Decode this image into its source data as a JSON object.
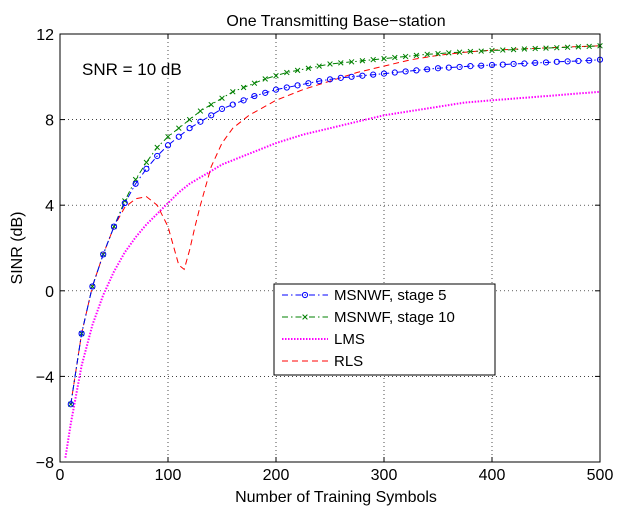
{
  "chart_data": {
    "type": "line",
    "title": "One Transmitting Base−station",
    "xlabel": "Number of Training Symbols",
    "ylabel": "SINR (dB)",
    "annotation": "SNR = 10 dB",
    "xlim": [
      0,
      500
    ],
    "ylim": [
      -8,
      12
    ],
    "xticks": [
      0,
      100,
      200,
      300,
      400,
      500
    ],
    "xtick_labels": [
      "0",
      "100",
      "200",
      "300",
      "400",
      "500"
    ],
    "yticks": [
      -8,
      -4,
      0,
      4,
      8,
      12
    ],
    "ytick_labels": [
      "−8",
      "−4",
      "0",
      "4",
      "8",
      "12"
    ],
    "grid": true,
    "legend_position": "center-right",
    "series": [
      {
        "name": "MSNWF, stage 5",
        "color": "#0000ff",
        "marker": "circle",
        "dash": "dashdot",
        "x": [
          10,
          20,
          30,
          40,
          50,
          60,
          70,
          80,
          90,
          100,
          110,
          120,
          130,
          140,
          150,
          160,
          170,
          180,
          190,
          200,
          210,
          220,
          230,
          240,
          250,
          260,
          270,
          280,
          290,
          300,
          310,
          320,
          330,
          340,
          350,
          360,
          370,
          380,
          390,
          400,
          410,
          420,
          430,
          440,
          450,
          460,
          470,
          480,
          490,
          500
        ],
        "y": [
          -5.3,
          -2.0,
          0.2,
          1.7,
          3.0,
          4.1,
          5.0,
          5.7,
          6.3,
          6.8,
          7.2,
          7.6,
          7.9,
          8.2,
          8.5,
          8.7,
          8.9,
          9.1,
          9.25,
          9.4,
          9.5,
          9.6,
          9.7,
          9.8,
          9.88,
          9.95,
          10.0,
          10.05,
          10.1,
          10.15,
          10.2,
          10.25,
          10.3,
          10.35,
          10.4,
          10.43,
          10.46,
          10.5,
          10.52,
          10.55,
          10.57,
          10.6,
          10.62,
          10.65,
          10.67,
          10.7,
          10.72,
          10.74,
          10.76,
          10.8
        ]
      },
      {
        "name": "MSNWF, stage 10",
        "color": "#008000",
        "marker": "x",
        "dash": "dashdot",
        "x": [
          10,
          20,
          30,
          40,
          50,
          60,
          70,
          80,
          90,
          100,
          110,
          120,
          130,
          140,
          150,
          160,
          170,
          180,
          190,
          200,
          210,
          220,
          230,
          240,
          250,
          260,
          270,
          280,
          290,
          300,
          310,
          320,
          330,
          340,
          350,
          360,
          370,
          380,
          390,
          400,
          410,
          420,
          430,
          440,
          450,
          460,
          470,
          480,
          490,
          500
        ],
        "y": [
          -5.3,
          -2.0,
          0.2,
          1.7,
          3.0,
          4.2,
          5.2,
          6.0,
          6.7,
          7.2,
          7.6,
          8.0,
          8.4,
          8.7,
          9.0,
          9.3,
          9.5,
          9.7,
          9.9,
          10.05,
          10.2,
          10.3,
          10.4,
          10.5,
          10.6,
          10.65,
          10.7,
          10.75,
          10.8,
          10.85,
          10.9,
          10.95,
          11.0,
          11.05,
          11.08,
          11.12,
          11.15,
          11.18,
          11.2,
          11.23,
          11.25,
          11.27,
          11.3,
          11.32,
          11.34,
          11.36,
          11.38,
          11.4,
          11.42,
          11.45
        ]
      },
      {
        "name": "LMS",
        "color": "#ff00ff",
        "marker": "none",
        "dash": "dotted",
        "x": [
          5,
          10,
          20,
          30,
          40,
          50,
          60,
          70,
          80,
          90,
          100,
          110,
          120,
          130,
          140,
          150,
          175,
          200,
          225,
          250,
          275,
          300,
          325,
          350,
          375,
          400,
          425,
          450,
          475,
          500
        ],
        "y": [
          -7.8,
          -6.2,
          -3.5,
          -1.6,
          -0.2,
          0.9,
          1.8,
          2.5,
          3.1,
          3.6,
          4.1,
          4.6,
          5.0,
          5.3,
          5.6,
          5.9,
          6.4,
          6.9,
          7.3,
          7.6,
          7.9,
          8.2,
          8.4,
          8.6,
          8.8,
          8.9,
          9.0,
          9.1,
          9.2,
          9.3
        ]
      },
      {
        "name": "RLS",
        "color": "#ff0000",
        "marker": "none",
        "dash": "dashed",
        "x": [
          10,
          20,
          30,
          40,
          50,
          60,
          70,
          80,
          90,
          100,
          105,
          110,
          115,
          120,
          125,
          130,
          140,
          150,
          160,
          175,
          200,
          225,
          250,
          275,
          300,
          325,
          350,
          375,
          400,
          425,
          450,
          475,
          500
        ],
        "y": [
          -5.3,
          -2.0,
          0.2,
          1.7,
          3.0,
          3.9,
          4.3,
          4.4,
          4.0,
          3.0,
          2.1,
          1.2,
          1.0,
          1.9,
          3.0,
          4.0,
          5.8,
          6.9,
          7.6,
          8.2,
          8.9,
          9.4,
          9.8,
          10.2,
          10.5,
          10.8,
          11.0,
          11.15,
          11.25,
          11.3,
          11.35,
          11.4,
          11.45
        ]
      }
    ]
  }
}
